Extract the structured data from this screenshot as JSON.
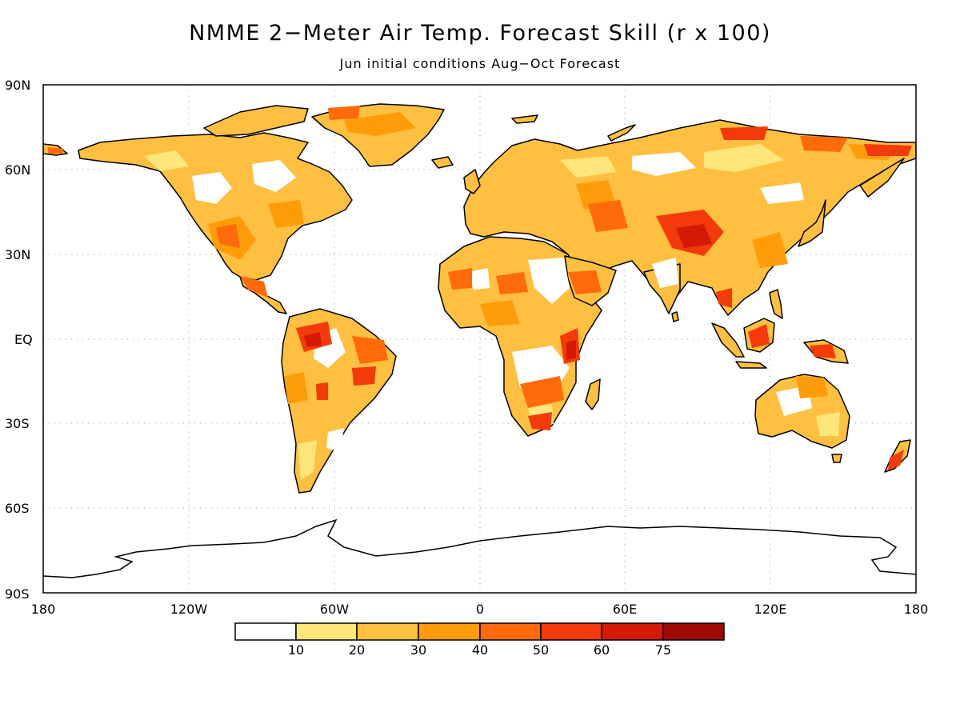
{
  "map": {
    "title": "NMME 2−Meter Air Temp. Forecast Skill (r x 100)",
    "subtitle": "Jun initial conditions  Aug−Oct Forecast",
    "lat_labels": [
      "90N",
      "60N",
      "30N",
      "EQ",
      "30S",
      "60S",
      "90S"
    ],
    "lon_labels": [
      "180",
      "120W",
      "60W",
      "0",
      "60E",
      "120E",
      "180"
    ],
    "extent": {
      "lon": [
        -180,
        180
      ],
      "lat": [
        -90,
        90
      ]
    },
    "gridlines": "dotted every 30 degrees",
    "projection": "cylindrical equidistant"
  },
  "colorbar": {
    "labels": [
      "10",
      "20",
      "30",
      "40",
      "50",
      "60",
      "75"
    ],
    "colors": [
      "#ffffff",
      "#ffe67a",
      "#ffbf40",
      "#ff9c0a",
      "#ff6a0a",
      "#f23a0a",
      "#d41a05",
      "#a00a05"
    ]
  }
}
